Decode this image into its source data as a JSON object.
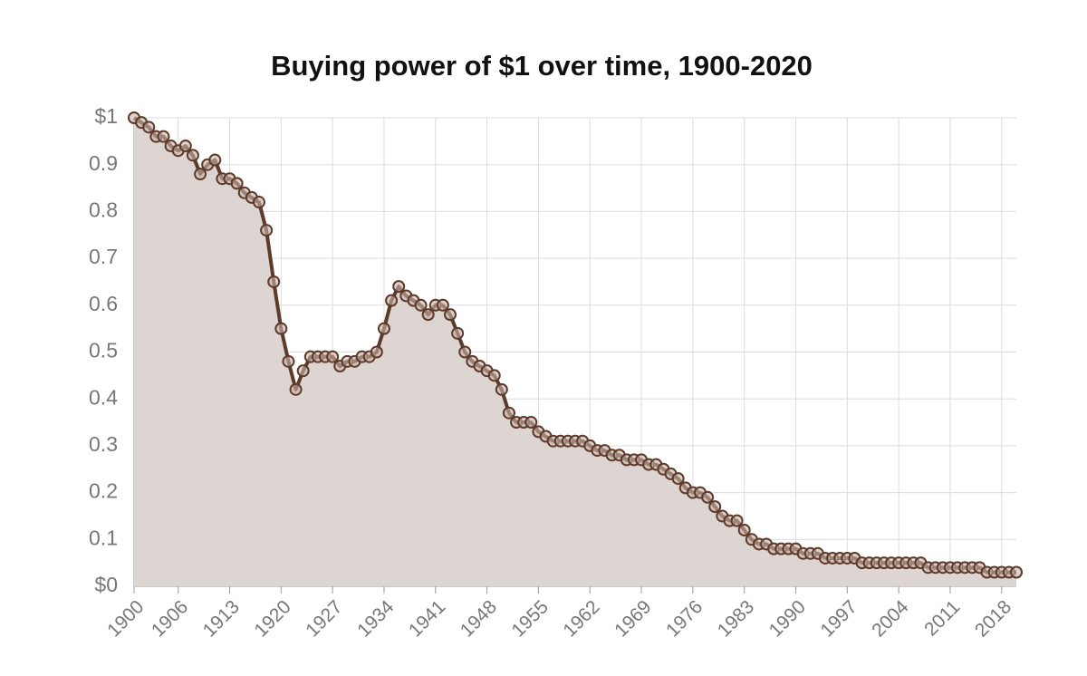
{
  "chart_data": {
    "type": "line",
    "title": "Buying power of $1 over time, 1900-2020",
    "x": [
      1900,
      1901,
      1902,
      1903,
      1904,
      1905,
      1906,
      1907,
      1908,
      1909,
      1910,
      1911,
      1912,
      1913,
      1914,
      1915,
      1916,
      1917,
      1918,
      1919,
      1920,
      1921,
      1922,
      1923,
      1924,
      1925,
      1926,
      1927,
      1928,
      1929,
      1930,
      1931,
      1932,
      1933,
      1934,
      1935,
      1936,
      1937,
      1938,
      1939,
      1940,
      1941,
      1942,
      1943,
      1944,
      1945,
      1946,
      1947,
      1948,
      1949,
      1950,
      1951,
      1952,
      1953,
      1954,
      1955,
      1956,
      1957,
      1958,
      1959,
      1960,
      1961,
      1962,
      1963,
      1964,
      1965,
      1966,
      1967,
      1968,
      1969,
      1970,
      1971,
      1972,
      1973,
      1974,
      1975,
      1976,
      1977,
      1978,
      1979,
      1980,
      1981,
      1982,
      1983,
      1984,
      1985,
      1986,
      1987,
      1988,
      1989,
      1990,
      1991,
      1992,
      1993,
      1994,
      1995,
      1996,
      1997,
      1998,
      1999,
      2000,
      2001,
      2002,
      2003,
      2004,
      2005,
      2006,
      2007,
      2008,
      2009,
      2010,
      2011,
      2012,
      2013,
      2014,
      2015,
      2016,
      2017,
      2018,
      2019,
      2020
    ],
    "values": [
      1.0,
      0.99,
      0.98,
      0.96,
      0.96,
      0.94,
      0.93,
      0.94,
      0.92,
      0.88,
      0.9,
      0.91,
      0.87,
      0.87,
      0.86,
      0.84,
      0.83,
      0.82,
      0.76,
      0.65,
      0.55,
      0.48,
      0.42,
      0.46,
      0.49,
      0.49,
      0.49,
      0.49,
      0.47,
      0.48,
      0.48,
      0.49,
      0.49,
      0.5,
      0.55,
      0.61,
      0.64,
      0.62,
      0.61,
      0.6,
      0.58,
      0.6,
      0.6,
      0.58,
      0.54,
      0.5,
      0.48,
      0.47,
      0.46,
      0.45,
      0.42,
      0.37,
      0.35,
      0.35,
      0.35,
      0.33,
      0.32,
      0.31,
      0.31,
      0.31,
      0.31,
      0.31,
      0.3,
      0.29,
      0.29,
      0.28,
      0.28,
      0.27,
      0.27,
      0.27,
      0.26,
      0.26,
      0.25,
      0.24,
      0.23,
      0.21,
      0.2,
      0.2,
      0.19,
      0.17,
      0.15,
      0.14,
      0.14,
      0.12,
      0.1,
      0.09,
      0.09,
      0.08,
      0.08,
      0.08,
      0.08,
      0.07,
      0.07,
      0.07,
      0.06,
      0.06,
      0.06,
      0.06,
      0.06,
      0.05,
      0.05,
      0.05,
      0.05,
      0.05,
      0.05,
      0.05,
      0.05,
      0.05,
      0.04,
      0.04,
      0.04,
      0.04,
      0.04,
      0.04,
      0.04,
      0.04,
      0.03,
      0.03,
      0.03,
      0.03,
      0.03
    ],
    "color": "#5e3a2a",
    "area_color": "#ddd5d2",
    "area": true,
    "grid": true,
    "xlim": [
      1900,
      2020
    ],
    "xticks": [
      1900,
      1906,
      1913,
      1920,
      1927,
      1934,
      1941,
      1948,
      1955,
      1962,
      1969,
      1976,
      1983,
      1990,
      1997,
      2004,
      2011,
      2018
    ],
    "ylim": [
      0,
      1
    ],
    "yticks": [
      {
        "value": 0,
        "label": "$0"
      },
      0.1,
      0.2,
      0.3,
      0.4,
      0.5,
      0.6,
      0.7,
      0.8,
      0.9,
      {
        "value": 1,
        "label": "$1"
      }
    ]
  }
}
